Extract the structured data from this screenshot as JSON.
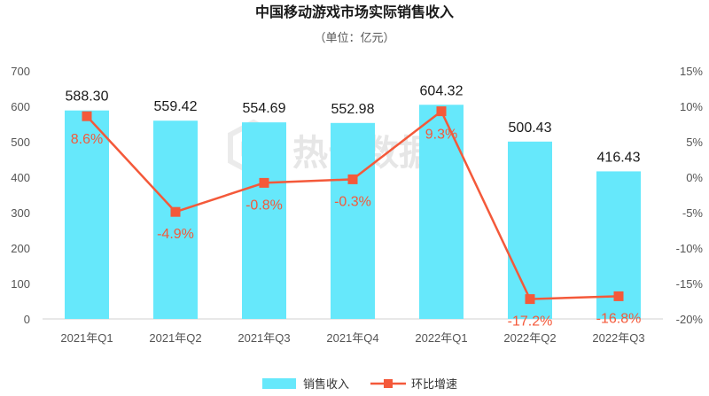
{
  "chart_data": {
    "type": "bar",
    "title": "中国移动游戏市场实际销售收入",
    "subtitle": "（单位：亿元）",
    "categories": [
      "2021年Q1",
      "2021年Q2",
      "2021年Q3",
      "2021年Q4",
      "2022年Q1",
      "2022年Q2",
      "2022年Q3"
    ],
    "series": [
      {
        "name": "销售收入",
        "kind": "bar",
        "axis": "left",
        "color": "#66e8fb",
        "values": [
          588.3,
          559.42,
          554.69,
          552.98,
          604.32,
          500.43,
          416.43
        ],
        "labels": [
          "588.30",
          "559.42",
          "554.69",
          "552.98",
          "604.32",
          "500.43",
          "416.43"
        ]
      },
      {
        "name": "环比增速",
        "kind": "line",
        "axis": "right",
        "color": "#f4593a",
        "values": [
          8.6,
          -4.9,
          -0.8,
          -0.3,
          9.3,
          -17.2,
          -16.8
        ],
        "labels": [
          "8.6%",
          "-4.9%",
          "-0.8%",
          "-0.3%",
          "9.3%",
          "-17.2%",
          "-16.8%"
        ]
      }
    ],
    "yleft": {
      "min": 0,
      "max": 700,
      "step": 100,
      "ticks": [
        "0",
        "100",
        "200",
        "300",
        "400",
        "500",
        "600",
        "700"
      ]
    },
    "yright": {
      "min": -20,
      "max": 15,
      "step": 5,
      "ticks": [
        "-20%",
        "-15%",
        "-10%",
        "-5%",
        "0%",
        "5%",
        "10%",
        "15%"
      ]
    },
    "legend_position": "bottom",
    "grid": false,
    "watermark": "热云数据"
  }
}
